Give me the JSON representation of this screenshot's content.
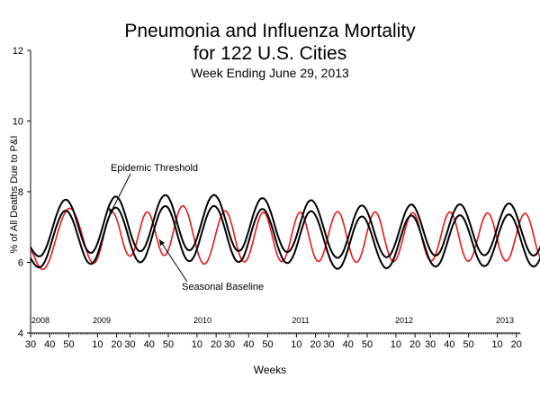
{
  "chart_data": {
    "type": "line",
    "title": [
      "Pneumonia and Influenza Mortality",
      "for 122 U.S. Cities"
    ],
    "subtitle": "Week Ending  June 29, 2013",
    "xlabel": "Weeks",
    "ylabel": "% of All Deaths Due to P&I",
    "ylim": [
      4,
      12
    ],
    "yticks": [
      4,
      6,
      8,
      10,
      12
    ],
    "grid": false,
    "x_start": {
      "year": 2008,
      "week": 30
    },
    "x_end": {
      "year": 2013,
      "week": 26
    },
    "xtick_labels": [
      "30",
      "40",
      "50",
      "10",
      "20",
      "30",
      "40",
      "50",
      "10",
      "20",
      "30",
      "40",
      "50",
      "10",
      "20",
      "30",
      "40",
      "50",
      "10",
      "20",
      "30",
      "40",
      "50",
      "10",
      "20"
    ],
    "year_labels": [
      "2008",
      "2009",
      "2010",
      "2011",
      "2012",
      "2013"
    ],
    "annotations": [
      "Epidemic Threshold",
      "Seasonal Baseline"
    ],
    "colors": {
      "observed": "#e8181c",
      "baseline": "#000000",
      "threshold": "#000000"
    },
    "series": [
      {
        "values": [
          6.35,
          6.28,
          6.15,
          6.02,
          5.92,
          5.84,
          5.8,
          5.81,
          5.86,
          5.96,
          6.09,
          6.25,
          6.43,
          6.62,
          6.81,
          6.99,
          7.16,
          7.3,
          7.41,
          7.49,
          7.53,
          7.52,
          7.48,
          7.39,
          7.27,
          7.12,
          6.95,
          6.76,
          6.57,
          6.38,
          6.21,
          6.08,
          6.0,
          5.97,
          6.01,
          6.11,
          6.27,
          6.47,
          6.7,
          6.93,
          7.14,
          7.3,
          7.4,
          7.42,
          7.36,
          7.23,
          7.05,
          6.84,
          6.62,
          6.43,
          6.29,
          6.2,
          6.17,
          6.21,
          6.32,
          6.48,
          6.69,
          6.9,
          7.11,
          7.28,
          7.39,
          7.43,
          7.39,
          7.28,
          7.11,
          6.9,
          6.68,
          6.48,
          6.32,
          6.22,
          6.19,
          6.23,
          6.34,
          6.51,
          6.73,
          6.96,
          7.18,
          7.37,
          7.51,
          7.59,
          7.6,
          7.54,
          7.41,
          7.24,
          7.03,
          6.8,
          6.57,
          6.36,
          6.18,
          6.05,
          5.97,
          5.95,
          5.99,
          6.09,
          6.24,
          6.42,
          6.63,
          6.84,
          7.05,
          7.23,
          7.36,
          7.45,
          7.46,
          7.4,
          7.28,
          7.1,
          6.89,
          6.66,
          6.44,
          6.25,
          6.11,
          6.03,
          6.01,
          6.06,
          6.17,
          6.33,
          6.53,
          6.75,
          6.97,
          7.16,
          7.31,
          7.4,
          7.42,
          7.36,
          7.23,
          7.04,
          6.82,
          6.59,
          6.38,
          6.2,
          6.08,
          6.02,
          6.03,
          6.11,
          6.25,
          6.44,
          6.66,
          6.89,
          7.1,
          7.27,
          7.38,
          7.42,
          7.38,
          7.26,
          7.08,
          6.86,
          6.63,
          6.41,
          6.23,
          6.1,
          6.03,
          6.03,
          6.1,
          6.23,
          6.41,
          6.62,
          6.84,
          7.05,
          7.23,
          7.36,
          7.43,
          7.43,
          7.36,
          7.22,
          7.03,
          6.8,
          6.57,
          6.36,
          6.18,
          6.06,
          6.0,
          6.01,
          6.09,
          6.23,
          6.42,
          6.64,
          6.87,
          7.08,
          7.26,
          7.38,
          7.43,
          7.4,
          7.3,
          7.13,
          6.91,
          6.68,
          6.46,
          6.27,
          6.12,
          6.04,
          6.02,
          6.07,
          6.18,
          6.34,
          6.53,
          6.75,
          6.96,
          7.15,
          7.3,
          7.39,
          7.41,
          7.36,
          7.23,
          7.05,
          6.83,
          6.6,
          6.39,
          6.22,
          6.1,
          6.04,
          6.05,
          6.12,
          6.25,
          6.43,
          6.64,
          6.86,
          7.07,
          7.25,
          7.37,
          7.43,
          7.41,
          7.32,
          7.16,
          6.95,
          6.72,
          6.49,
          6.29,
          6.14,
          6.05,
          6.03,
          6.07,
          6.17,
          6.32,
          6.51,
          6.72,
          6.93,
          7.12,
          7.27,
          7.37,
          7.4,
          7.36,
          7.25,
          7.08,
          6.87,
          6.65,
          6.43,
          6.25,
          6.12,
          6.05,
          6.04,
          6.1,
          6.21,
          6.38,
          6.58,
          6.79,
          7.0,
          7.18,
          7.31,
          7.38,
          7.38,
          7.31,
          7.17,
          6.98,
          6.76,
          6.54,
          6.34,
          6.18,
          6.07,
          6.02,
          6.04,
          6.12,
          6.26,
          6.44,
          6.65,
          6.86,
          7.06,
          7.22,
          7.33,
          7.38,
          7.36,
          7.26,
          7.1,
          6.89,
          6.67,
          6.46,
          6.28,
          6.14,
          6.07,
          6.06,
          6.12,
          6.24,
          6.41,
          6.6,
          6.81,
          7.0,
          7.16,
          7.27,
          7.32,
          7.3,
          7.21,
          7.06,
          6.87,
          6.66,
          6.46,
          6.28,
          6.15,
          6.07,
          6.06,
          6.11,
          6.22
        ],
        "x_units": "weeks from 2008 week 30",
        "color": "#e8181c",
        "style": "observed"
      },
      {
        "values": [
          6.12,
          6.03,
          5.95,
          5.89,
          5.86,
          5.86,
          5.9,
          5.98,
          6.09,
          6.23,
          6.4,
          6.58,
          6.76,
          6.94,
          7.1,
          7.24,
          7.35,
          7.43,
          7.46,
          7.46,
          7.41,
          7.32,
          7.2,
          7.05,
          6.88,
          6.7,
          6.52,
          6.35,
          6.2,
          6.08,
          6.0,
          5.96,
          5.96,
          6.01,
          6.1,
          6.23,
          6.39,
          6.57,
          6.76,
          6.95,
          7.13,
          7.29,
          7.41,
          7.5,
          7.55,
          7.55,
          7.5,
          7.41,
          7.28,
          7.12,
          6.94,
          6.75,
          6.56,
          6.39,
          6.24,
          6.12,
          6.04,
          6.0,
          6.01,
          6.06,
          6.15,
          6.29,
          6.45,
          6.63,
          6.82,
          7.01,
          7.19,
          7.35,
          7.47,
          7.55,
          7.59,
          7.59,
          7.54,
          7.44,
          7.3,
          7.13,
          6.94,
          6.74,
          6.55,
          6.38,
          6.23,
          6.12,
          6.05,
          6.03,
          6.05,
          6.12,
          6.23,
          6.38,
          6.55,
          6.74,
          6.93,
          7.11,
          7.28,
          7.42,
          7.52,
          7.58,
          7.6,
          7.57,
          7.5,
          7.39,
          7.24,
          7.06,
          6.87,
          6.67,
          6.49,
          6.32,
          6.18,
          6.08,
          6.02,
          6.01,
          6.04,
          6.12,
          6.24,
          6.4,
          6.58,
          6.77,
          6.96,
          7.13,
          7.28,
          7.4,
          7.48,
          7.51,
          7.5,
          7.44,
          7.34,
          7.2,
          7.04,
          6.86,
          6.67,
          6.49,
          6.33,
          6.19,
          6.08,
          6.01,
          5.98,
          5.99,
          6.05,
          6.14,
          6.27,
          6.43,
          6.61,
          6.8,
          6.98,
          7.15,
          7.29,
          7.39,
          7.44,
          7.45,
          7.41,
          7.33,
          7.21,
          7.06,
          6.89,
          6.71,
          6.52,
          6.34,
          6.18,
          6.04,
          5.93,
          5.86,
          5.82,
          5.82,
          5.86,
          5.94,
          6.06,
          6.21,
          6.38,
          6.56,
          6.74,
          6.92,
          7.07,
          7.19,
          7.27,
          7.3,
          7.29,
          7.23,
          7.13,
          7.0,
          6.84,
          6.67,
          6.49,
          6.32,
          6.16,
          6.03,
          5.93,
          5.86,
          5.83,
          5.85,
          5.9,
          5.99,
          6.12,
          6.27,
          6.44,
          6.62,
          6.8,
          6.97,
          7.12,
          7.23,
          7.3,
          7.33,
          7.31,
          7.24,
          7.13,
          6.99,
          6.83,
          6.65,
          6.47,
          6.3,
          6.15,
          6.03,
          5.94,
          5.89,
          5.88,
          5.91,
          5.98,
          6.09,
          6.24,
          6.4,
          6.58,
          6.76,
          6.93,
          7.08,
          7.2,
          7.29,
          7.33,
          7.33,
          7.28,
          7.19,
          7.06,
          6.91,
          6.74,
          6.56,
          6.39,
          6.23,
          6.09,
          5.99,
          5.92,
          5.89,
          5.9,
          5.95,
          6.04,
          6.17,
          6.32,
          6.49,
          6.67,
          6.85,
          7.01,
          7.15,
          7.26,
          7.33,
          7.36,
          7.34,
          7.28,
          7.18,
          7.04,
          6.88,
          6.7,
          6.52,
          6.35,
          6.19,
          6.06,
          5.96,
          5.9,
          5.88,
          5.9,
          5.96,
          6.06,
          6.19,
          6.35,
          6.52,
          6.7,
          6.88,
          7.04,
          7.17,
          7.27,
          7.33,
          7.34,
          7.31,
          7.23,
          7.12,
          6.97,
          6.8,
          6.62,
          6.44,
          6.28,
          6.13,
          6.02,
          5.94,
          5.9,
          5.9,
          5.94,
          6.03,
          6.14,
          6.29,
          6.45
        ],
        "color": "#000000",
        "style": "baseline"
      },
      {
        "values": [
          6.43,
          6.34,
          6.26,
          6.2,
          6.17,
          6.17,
          6.21,
          6.29,
          6.4,
          6.54,
          6.71,
          6.89,
          7.07,
          7.25,
          7.41,
          7.55,
          7.66,
          7.74,
          7.77,
          7.77,
          7.72,
          7.63,
          7.51,
          7.36,
          7.19,
          7.01,
          6.83,
          6.66,
          6.51,
          6.39,
          6.31,
          6.27,
          6.27,
          6.32,
          6.41,
          6.54,
          6.7,
          6.88,
          7.07,
          7.26,
          7.44,
          7.6,
          7.72,
          7.81,
          7.86,
          7.86,
          7.81,
          7.72,
          7.59,
          7.43,
          7.25,
          7.06,
          6.87,
          6.7,
          6.55,
          6.43,
          6.35,
          6.31,
          6.32,
          6.37,
          6.46,
          6.6,
          6.76,
          6.94,
          7.13,
          7.32,
          7.5,
          7.66,
          7.78,
          7.86,
          7.9,
          7.9,
          7.85,
          7.75,
          7.61,
          7.44,
          7.25,
          7.05,
          6.86,
          6.69,
          6.54,
          6.43,
          6.36,
          6.34,
          6.36,
          6.43,
          6.54,
          6.69,
          6.86,
          7.05,
          7.24,
          7.42,
          7.59,
          7.73,
          7.83,
          7.89,
          7.91,
          7.88,
          7.81,
          7.7,
          7.55,
          7.37,
          7.18,
          6.98,
          6.8,
          6.63,
          6.49,
          6.39,
          6.33,
          6.32,
          6.35,
          6.43,
          6.55,
          6.71,
          6.89,
          7.08,
          7.27,
          7.44,
          7.59,
          7.71,
          7.79,
          7.82,
          7.81,
          7.75,
          7.65,
          7.51,
          7.35,
          7.17,
          6.98,
          6.8,
          6.64,
          6.5,
          6.39,
          6.32,
          6.29,
          6.3,
          6.36,
          6.45,
          6.58,
          6.74,
          6.92,
          7.11,
          7.29,
          7.46,
          7.6,
          7.7,
          7.75,
          7.76,
          7.72,
          7.64,
          7.52,
          7.37,
          7.2,
          7.02,
          6.83,
          6.65,
          6.49,
          6.35,
          6.24,
          6.17,
          6.13,
          6.13,
          6.17,
          6.25,
          6.37,
          6.52,
          6.69,
          6.87,
          7.05,
          7.23,
          7.38,
          7.5,
          7.58,
          7.61,
          7.6,
          7.54,
          7.44,
          7.31,
          7.15,
          6.98,
          6.8,
          6.63,
          6.47,
          6.34,
          6.24,
          6.17,
          6.14,
          6.16,
          6.21,
          6.3,
          6.43,
          6.58,
          6.75,
          6.93,
          7.11,
          7.28,
          7.43,
          7.54,
          7.61,
          7.64,
          7.62,
          7.55,
          7.44,
          7.3,
          7.14,
          6.96,
          6.78,
          6.61,
          6.46,
          6.34,
          6.25,
          6.2,
          6.19,
          6.22,
          6.29,
          6.4,
          6.55,
          6.71,
          6.89,
          7.07,
          7.24,
          7.39,
          7.51,
          7.6,
          7.64,
          7.64,
          7.59,
          7.5,
          7.37,
          7.22,
          7.05,
          6.87,
          6.7,
          6.54,
          6.4,
          6.3,
          6.23,
          6.2,
          6.21,
          6.26,
          6.35,
          6.48,
          6.63,
          6.8,
          6.98,
          7.16,
          7.32,
          7.46,
          7.57,
          7.64,
          7.67,
          7.65,
          7.59,
          7.49,
          7.35,
          7.19,
          7.01,
          6.83,
          6.66,
          6.5,
          6.37,
          6.27,
          6.21,
          6.19,
          6.21,
          6.27,
          6.37,
          6.5,
          6.66,
          6.83,
          7.01,
          7.19,
          7.35,
          7.48,
          7.58,
          7.64,
          7.65,
          7.62,
          7.54,
          7.43,
          7.28,
          7.11,
          6.93,
          6.75,
          6.59,
          6.44,
          6.33,
          6.25,
          6.21,
          6.21,
          6.25,
          6.34,
          6.45,
          6.6,
          6.76
        ],
        "color": "#000000",
        "style": "threshold"
      }
    ]
  }
}
